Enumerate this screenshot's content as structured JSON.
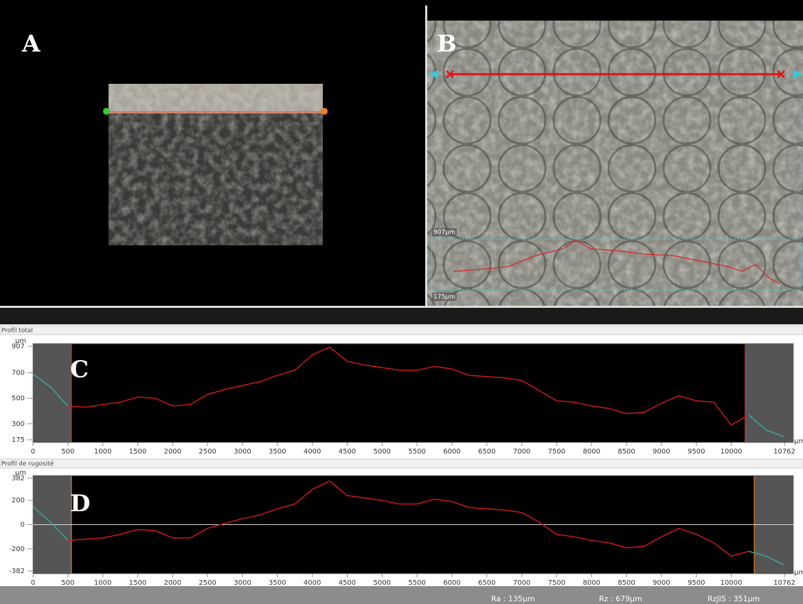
{
  "panels": {
    "a": "A",
    "b": "B",
    "c": "C",
    "d": "D"
  },
  "panel_b": {
    "top_label": "907µm",
    "bottom_label": "175µm"
  },
  "stats": [
    "Ra : 135µm",
    "Rz : 679µm",
    "RzJIS : 351µm"
  ],
  "chart_data": [
    {
      "type": "line",
      "title": "Profil total",
      "y_unit": "µm",
      "x_unit": "µm",
      "x": [
        0,
        250,
        500,
        750,
        1000,
        1250,
        1500,
        1750,
        2000,
        2250,
        2500,
        2750,
        3000,
        3250,
        3500,
        3750,
        4000,
        4250,
        4500,
        4750,
        5000,
        5250,
        5500,
        5750,
        6000,
        6250,
        6500,
        6750,
        7000,
        7250,
        7500,
        7750,
        8000,
        8250,
        8500,
        8750,
        9000,
        9250,
        9500,
        9750,
        10000,
        10250,
        10500,
        10750
      ],
      "series": [
        {
          "color": "#3aa7a7",
          "values": [
            690,
            590,
            440,
            null,
            null,
            null,
            null,
            null,
            null,
            null,
            null,
            null,
            null,
            null,
            null,
            null,
            null,
            null,
            null,
            null,
            null,
            null,
            null,
            null,
            null,
            null,
            null,
            null,
            null,
            null,
            null,
            null,
            null,
            null,
            null,
            null,
            null,
            null,
            null,
            null,
            null,
            370,
            250,
            200
          ]
        },
        {
          "color": "#d01818",
          "values": [
            null,
            null,
            440,
            430,
            450,
            470,
            510,
            500,
            440,
            450,
            530,
            570,
            600,
            630,
            680,
            720,
            840,
            900,
            790,
            760,
            740,
            720,
            720,
            750,
            730,
            680,
            670,
            660,
            640,
            560,
            480,
            470,
            440,
            420,
            380,
            390,
            460,
            520,
            480,
            470,
            290,
            370,
            null,
            null
          ]
        }
      ],
      "xlim": [
        0,
        10762
      ],
      "ylim": [
        175,
        907
      ],
      "xticks": [
        0,
        500,
        1000,
        1500,
        2000,
        2500,
        3000,
        3500,
        4000,
        4500,
        5000,
        5500,
        6000,
        6500,
        7000,
        7500,
        8000,
        8500,
        9000,
        9500,
        10000,
        10762
      ],
      "yticks": [
        907,
        700,
        500,
        300,
        175
      ],
      "active_range": [
        550,
        10200
      ],
      "range_color": "#c03030",
      "zero_line": false
    },
    {
      "type": "line",
      "title": "Profil de rugosité",
      "y_unit": "µm",
      "x_unit": "µm",
      "x": [
        0,
        250,
        500,
        750,
        1000,
        1250,
        1500,
        1750,
        2000,
        2250,
        2500,
        2750,
        3000,
        3250,
        3500,
        3750,
        4000,
        4250,
        4500,
        4750,
        5000,
        5250,
        5500,
        5750,
        6000,
        6250,
        6500,
        6750,
        7000,
        7250,
        7500,
        7750,
        8000,
        8250,
        8500,
        8750,
        9000,
        9250,
        9500,
        9750,
        10000,
        10250,
        10500,
        10750
      ],
      "series": [
        {
          "color": "#3aa7a7",
          "values": [
            150,
            20,
            -130,
            null,
            null,
            null,
            null,
            null,
            null,
            null,
            null,
            null,
            null,
            null,
            null,
            null,
            null,
            null,
            null,
            null,
            null,
            null,
            null,
            null,
            null,
            null,
            null,
            null,
            null,
            null,
            null,
            null,
            null,
            null,
            null,
            null,
            null,
            null,
            null,
            null,
            null,
            -220,
            -260,
            -330
          ]
        },
        {
          "color": "#d01818",
          "values": [
            null,
            null,
            -130,
            -120,
            -110,
            -80,
            -40,
            -50,
            -110,
            -110,
            -30,
            10,
            50,
            80,
            130,
            170,
            290,
            360,
            240,
            220,
            200,
            170,
            170,
            210,
            190,
            140,
            130,
            120,
            100,
            20,
            -80,
            -100,
            -130,
            -150,
            -190,
            -180,
            -100,
            -30,
            -80,
            -150,
            -260,
            -220,
            null,
            null
          ]
        }
      ],
      "xlim": [
        0,
        10762
      ],
      "ylim": [
        -382,
        382
      ],
      "xticks": [
        0,
        500,
        1000,
        1500,
        2000,
        2500,
        3000,
        3500,
        4000,
        4500,
        5000,
        5500,
        6000,
        6500,
        7000,
        7500,
        8000,
        8500,
        9000,
        9500,
        10000,
        10762
      ],
      "yticks": [
        382,
        200,
        0,
        -200,
        -382
      ],
      "active_range": [
        550,
        10330
      ],
      "range_color": "#c07030",
      "zero_line": true
    }
  ]
}
